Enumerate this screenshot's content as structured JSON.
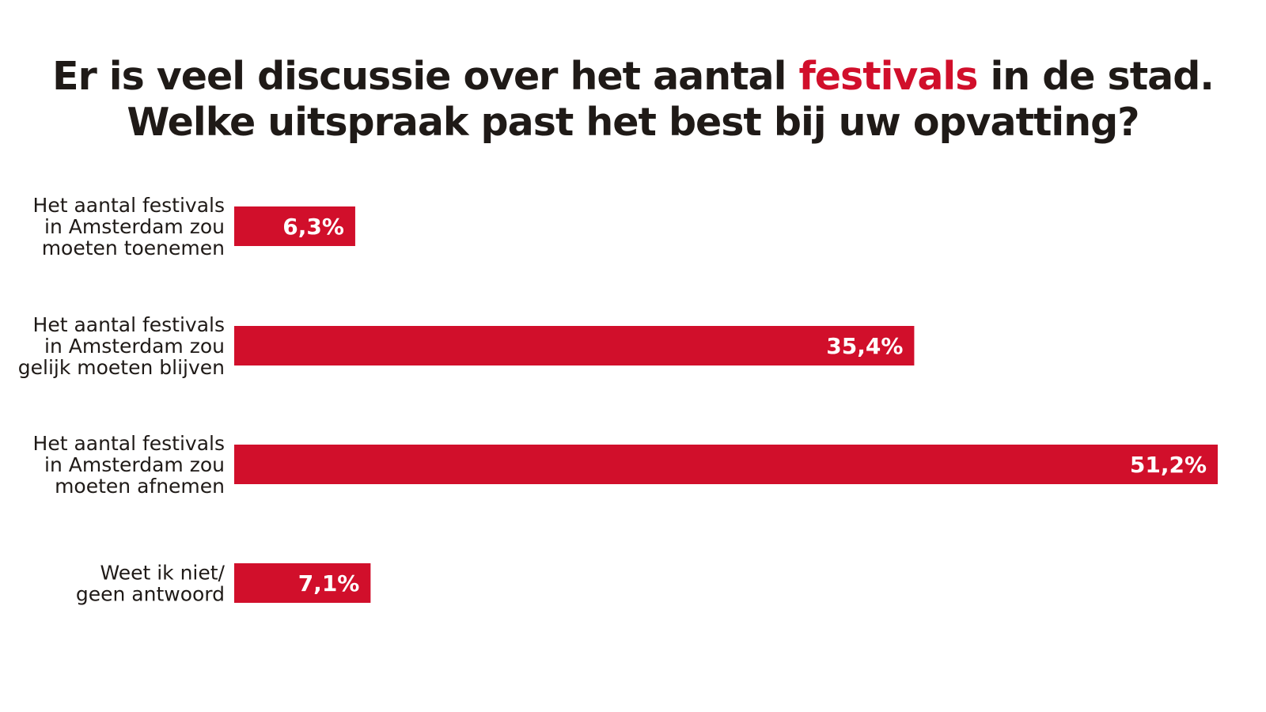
{
  "title": {
    "line1_before": "Er is veel discussie over het aantal ",
    "line1_highlight": "festivals",
    "line1_after": " in de stad.",
    "line2": "Welke uitspraak past het best bij uw opvatting?"
  },
  "colors": {
    "bar": "#d10f2b",
    "highlight": "#d10f2b",
    "text": "#1f1a17",
    "background": "#ffffff"
  },
  "chart_data": {
    "type": "bar",
    "orientation": "horizontal",
    "title": "Er is veel discussie over het aantal festivals in de stad. Welke uitspraak past het best bij uw opvatting?",
    "categories": [
      [
        "Het aantal festivals",
        "in Amsterdam zou",
        "moeten toenemen"
      ],
      [
        "Het aantal festivals",
        "in Amsterdam zou",
        "gelijk moeten blijven"
      ],
      [
        "Het aantal festivals",
        "in Amsterdam zou",
        "moeten afnemen"
      ],
      [
        "Weet ik niet/",
        "geen antwoord"
      ]
    ],
    "values": [
      6.3,
      35.4,
      51.2,
      7.1
    ],
    "value_labels": [
      "6,3%",
      "35,4%",
      "51,2%",
      "7,1%"
    ],
    "unit": "%",
    "grid": false,
    "legend": "none"
  }
}
